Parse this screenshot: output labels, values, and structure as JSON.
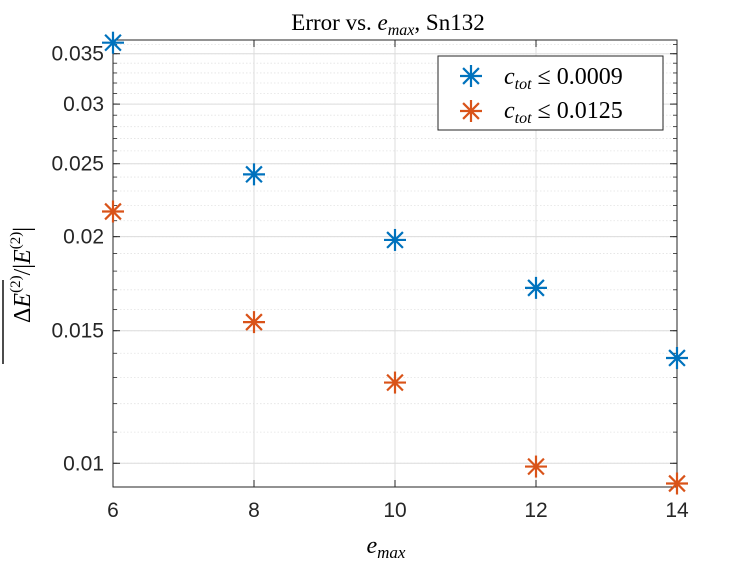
{
  "chart_data": {
    "type": "scatter",
    "title": "Error vs. e_max, Sn132",
    "xlabel": "e_max",
    "ylabel": "ΔE⁽²⁾ / |E⁽²⁾|",
    "xlim": [
      6,
      14
    ],
    "ylim": [
      0.0093,
      0.0365
    ],
    "yscale": "log",
    "grid": true,
    "minor_grid": true,
    "legend_position": "top-right",
    "x_ticks": [
      6,
      8,
      10,
      12,
      14
    ],
    "x_tick_labels": [
      "6",
      "8",
      "10",
      "12",
      "14"
    ],
    "y_ticks": [
      0.01,
      0.015,
      0.02,
      0.025,
      0.03,
      0.035
    ],
    "y_tick_labels": [
      "0.01",
      "0.015",
      "0.02",
      "0.025",
      "0.03",
      "0.035"
    ],
    "series": [
      {
        "name": "c_tot ≤ 0.0009",
        "color": "#0072BD",
        "marker": "asterisk",
        "x": [
          6,
          8,
          10,
          12,
          14
        ],
        "y": [
          0.0362,
          0.0242,
          0.0198,
          0.0171,
          0.0138
        ]
      },
      {
        "name": "c_tot ≤ 0.0125",
        "color": "#D95319",
        "marker": "asterisk",
        "x": [
          6,
          8,
          10,
          12,
          14
        ],
        "y": [
          0.0216,
          0.0154,
          0.0128,
          0.0099,
          0.0094
        ]
      }
    ]
  }
}
